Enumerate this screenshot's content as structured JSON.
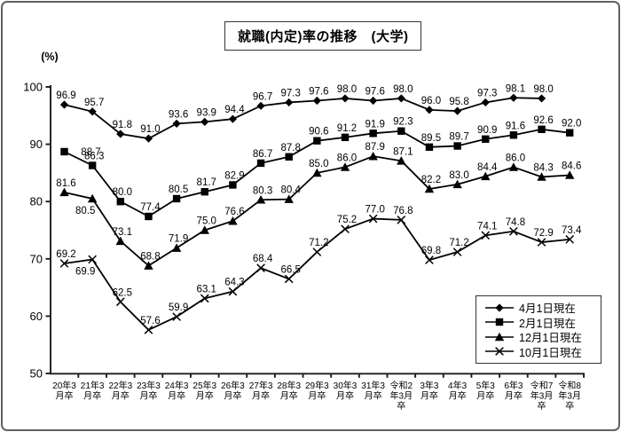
{
  "title": "就職(内定)率の推移　(大学)",
  "chart_data": {
    "type": "line",
    "title": "就職(内定)率の推移　(大学)",
    "xlabel": "",
    "ylabel": "(%)",
    "ylim": [
      50,
      100
    ],
    "y_ticks": [
      100,
      90,
      80,
      70,
      60,
      50
    ],
    "grid": false,
    "legend_position": "inside-bottom-right",
    "line_color": "#000000",
    "background": "#ffffff",
    "categories": [
      [
        "20年3",
        "月卒"
      ],
      [
        "21年3",
        "月卒"
      ],
      [
        "22年3",
        "月卒"
      ],
      [
        "23年3",
        "月卒"
      ],
      [
        "24年3",
        "月卒"
      ],
      [
        "25年3",
        "月卒"
      ],
      [
        "26年3",
        "月卒"
      ],
      [
        "27年3",
        "月卒"
      ],
      [
        "28年3",
        "月卒"
      ],
      [
        "29年3",
        "月卒"
      ],
      [
        "30年3",
        "月卒"
      ],
      [
        "31年3",
        "月卒"
      ],
      [
        "令和2",
        "年3月",
        "卒"
      ],
      [
        "3年3",
        "月卒"
      ],
      [
        "4年3",
        "月卒"
      ],
      [
        "5年3",
        "月卒"
      ],
      [
        "6年3",
        "月卒"
      ],
      [
        "令和7",
        "年3月",
        "卒"
      ],
      [
        "令和8",
        "年3月",
        "卒"
      ]
    ],
    "series": [
      {
        "name": "4月1日現在",
        "marker": "diamond",
        "values": [
          96.9,
          95.7,
          91.8,
          91.0,
          93.6,
          93.9,
          94.4,
          96.7,
          97.3,
          97.6,
          98.0,
          97.6,
          98.0,
          96.0,
          95.8,
          97.3,
          98.1,
          98.0,
          null
        ]
      },
      {
        "name": "2月1日現在",
        "marker": "square",
        "values": [
          88.7,
          86.3,
          80.0,
          77.4,
          80.5,
          81.7,
          82.9,
          86.7,
          87.8,
          90.6,
          91.2,
          91.9,
          92.3,
          89.5,
          89.7,
          90.9,
          91.6,
          92.6,
          92.0
        ]
      },
      {
        "name": "12月1日現在",
        "marker": "triangle",
        "values": [
          81.6,
          80.5,
          73.1,
          68.8,
          71.9,
          75.0,
          76.6,
          80.3,
          80.4,
          85.0,
          86.0,
          87.9,
          87.1,
          82.2,
          83.0,
          84.4,
          86.0,
          84.3,
          84.6
        ]
      },
      {
        "name": "10月1日現在",
        "marker": "x",
        "values": [
          69.2,
          69.9,
          62.5,
          57.6,
          59.9,
          63.1,
          64.3,
          68.4,
          66.5,
          71.2,
          75.2,
          77.0,
          76.8,
          69.8,
          71.2,
          74.1,
          74.8,
          72.9,
          73.4
        ]
      }
    ]
  }
}
